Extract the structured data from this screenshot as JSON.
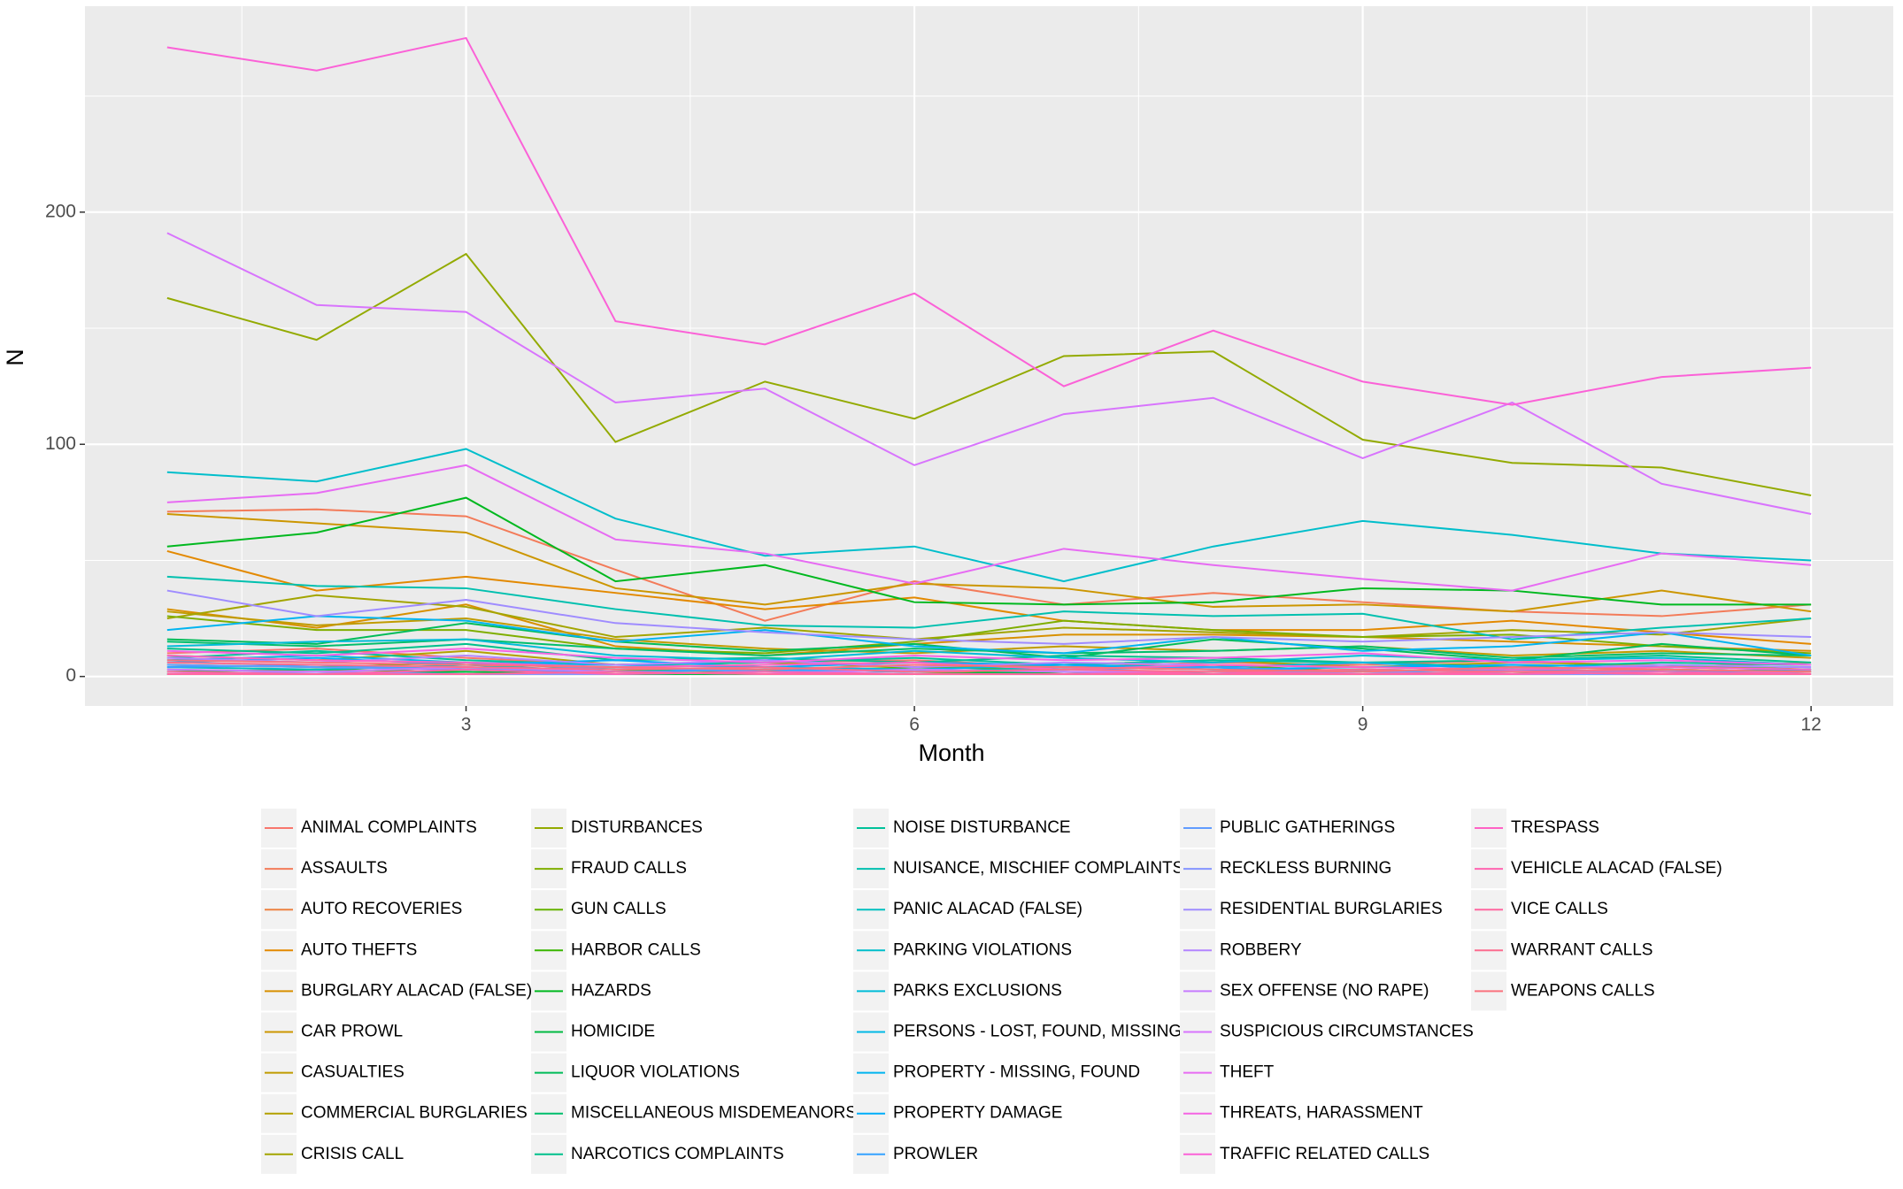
{
  "chart_data": {
    "type": "line",
    "x_label": "Month",
    "y_label": "N",
    "x": [
      1,
      2,
      3,
      4,
      5,
      6,
      7,
      8,
      9,
      10,
      11,
      12
    ],
    "xlim": [
      0.45,
      12.55
    ],
    "xticks": [
      3,
      6,
      9,
      12
    ],
    "x_minor_ticks": [
      1.5,
      4.5,
      7.5,
      10.5
    ],
    "ylim": [
      -12.7,
      288.7
    ],
    "yticks": [
      0,
      100,
      200
    ],
    "y_minor_ticks": [
      50,
      150,
      250
    ],
    "grid": true,
    "legend": "bottom",
    "series": [
      {
        "name": "ANIMAL COMPLAINTS",
        "color": "#F8766D",
        "values": [
          10,
          12,
          8,
          5,
          6,
          7,
          4,
          6,
          5,
          7,
          4,
          6
        ]
      },
      {
        "name": "ASSAULTS",
        "color": "#F37B59",
        "values": [
          71,
          72,
          69,
          46,
          24,
          41,
          31,
          36,
          32,
          28,
          26,
          31
        ]
      },
      {
        "name": "AUTO RECOVERIES",
        "color": "#ED8141",
        "values": [
          3,
          2,
          4,
          2,
          3,
          2,
          1,
          2,
          3,
          2,
          2,
          1
        ]
      },
      {
        "name": "AUTO THEFTS",
        "color": "#E38900",
        "values": [
          54,
          37,
          43,
          36,
          29,
          34,
          24,
          20,
          20,
          24,
          19,
          14
        ]
      },
      {
        "name": "BURGLARY ALACAD (FALSE)",
        "color": "#D89000",
        "values": [
          29,
          21,
          31,
          13,
          9,
          14,
          18,
          18,
          17,
          15,
          13,
          11
        ]
      },
      {
        "name": "CAR PROWL",
        "color": "#CC9600",
        "values": [
          70,
          66,
          62,
          38,
          31,
          40,
          38,
          30,
          31,
          28,
          37,
          28
        ]
      },
      {
        "name": "CASUALTIES",
        "color": "#C09B00",
        "values": [
          28,
          22,
          25,
          16,
          12,
          10,
          13,
          11,
          13,
          9,
          11,
          8
        ]
      },
      {
        "name": "COMMERCIAL BURGLARIES",
        "color": "#B3A000",
        "values": [
          9,
          7,
          11,
          5,
          6,
          4,
          5,
          7,
          4,
          6,
          5,
          3
        ]
      },
      {
        "name": "CRISIS CALL",
        "color": "#A3A500",
        "values": [
          25,
          35,
          30,
          17,
          21,
          16,
          21,
          19,
          17,
          20,
          18,
          25
        ]
      },
      {
        "name": "DISTURBANCES",
        "color": "#93AA00",
        "values": [
          163,
          145,
          182,
          101,
          127,
          111,
          138,
          140,
          102,
          92,
          90,
          78
        ]
      },
      {
        "name": "FRAUD CALLS",
        "color": "#7FAE00",
        "values": [
          26,
          20,
          20,
          12,
          10,
          15,
          24,
          20,
          17,
          18,
          13,
          10
        ]
      },
      {
        "name": "GUN CALLS",
        "color": "#65B200",
        "values": [
          5,
          4,
          6,
          3,
          2,
          4,
          3,
          5,
          2,
          4,
          3,
          2
        ]
      },
      {
        "name": "HARBOR CALLS",
        "color": "#39B600",
        "values": [
          2,
          3,
          2,
          1,
          2,
          3,
          1,
          2,
          2,
          1,
          3,
          2
        ]
      },
      {
        "name": "HAZARDS",
        "color": "#00B81F",
        "values": [
          56,
          62,
          77,
          41,
          48,
          32,
          31,
          32,
          38,
          37,
          31,
          31
        ]
      },
      {
        "name": "HOMICIDE",
        "color": "#00BA42",
        "values": [
          1,
          1,
          2,
          1,
          1,
          1,
          2,
          1,
          1,
          1,
          1,
          2
        ]
      },
      {
        "name": "LIQUOR VIOLATIONS",
        "color": "#00BC59",
        "values": [
          16,
          14,
          23,
          15,
          11,
          14,
          8,
          16,
          12,
          7,
          14,
          9
        ]
      },
      {
        "name": "MISCELLANEOUS MISDEMEANORS",
        "color": "#00BE6C",
        "values": [
          15,
          13,
          16,
          12,
          9,
          12,
          10,
          11,
          13,
          8,
          10,
          9
        ]
      },
      {
        "name": "NARCOTICS COMPLAINTS",
        "color": "#00C08B",
        "values": [
          12,
          10,
          14,
          7,
          8,
          6,
          9,
          8,
          6,
          7,
          9,
          6
        ]
      },
      {
        "name": "NOISE DISTURBANCE",
        "color": "#00C19A",
        "values": [
          8,
          11,
          7,
          5,
          6,
          8,
          5,
          7,
          6,
          4,
          6,
          5
        ]
      },
      {
        "name": "NUISANCE, MISCHIEF COMPLAINTS",
        "color": "#00C0AF",
        "values": [
          43,
          39,
          38,
          29,
          22,
          21,
          28,
          26,
          27,
          16,
          21,
          25
        ]
      },
      {
        "name": "PANIC ALACAD (FALSE)",
        "color": "#00BFC0",
        "values": [
          4,
          3,
          5,
          2,
          3,
          2,
          4,
          3,
          2,
          3,
          2,
          3
        ]
      },
      {
        "name": "PARKING VIOLATIONS",
        "color": "#00BECB",
        "values": [
          88,
          84,
          98,
          68,
          52,
          56,
          41,
          56,
          67,
          61,
          53,
          50
        ]
      },
      {
        "name": "PARKS EXCLUSIONS",
        "color": "#00BCD8",
        "values": [
          13,
          15,
          16,
          9,
          7,
          11,
          8,
          6,
          9,
          7,
          8,
          5
        ]
      },
      {
        "name": "PERSONS - LOST, FOUND, MISSING",
        "color": "#00B8E5",
        "values": [
          7,
          9,
          6,
          5,
          4,
          3,
          5,
          4,
          6,
          3,
          5,
          4
        ]
      },
      {
        "name": "PROPERTY - MISSING, FOUND",
        "color": "#00B4F0",
        "values": [
          20,
          26,
          24,
          15,
          20,
          13,
          10,
          17,
          11,
          13,
          19,
          9
        ]
      },
      {
        "name": "PROPERTY DAMAGE",
        "color": "#00ADFA",
        "values": [
          6,
          8,
          5,
          7,
          4,
          6,
          5,
          3,
          4,
          5,
          4,
          3
        ]
      },
      {
        "name": "PROWLER",
        "color": "#35A2FF",
        "values": [
          4,
          5,
          3,
          2,
          3,
          2,
          3,
          4,
          2,
          3,
          2,
          2
        ]
      },
      {
        "name": "PUBLIC GATHERINGS",
        "color": "#619CFF",
        "values": [
          5,
          4,
          3,
          4,
          2,
          3,
          2,
          1,
          3,
          2,
          2,
          1
        ]
      },
      {
        "name": "RECKLESS BURNING",
        "color": "#8494FF",
        "values": [
          1,
          2,
          1,
          1,
          2,
          1,
          1,
          1,
          2,
          1,
          1,
          1
        ]
      },
      {
        "name": "RESIDENTIAL BURGLARIES",
        "color": "#9F8CFF",
        "values": [
          37,
          26,
          33,
          23,
          19,
          16,
          14,
          17,
          15,
          17,
          19,
          17
        ]
      },
      {
        "name": "ROBBERY",
        "color": "#B385FF",
        "values": [
          8,
          6,
          9,
          5,
          7,
          4,
          6,
          5,
          4,
          3,
          5,
          4
        ]
      },
      {
        "name": "SEX OFFENSE (NO RAPE)",
        "color": "#C77CFF",
        "values": [
          3,
          2,
          4,
          2,
          1,
          3,
          2,
          2,
          1,
          2,
          1,
          2
        ]
      },
      {
        "name": "SUSPICIOUS CIRCUMSTANCES",
        "color": "#D874FD",
        "values": [
          191,
          160,
          157,
          118,
          124,
          91,
          113,
          120,
          94,
          118,
          83,
          70
        ]
      },
      {
        "name": "THEFT",
        "color": "#E76BF3",
        "values": [
          75,
          79,
          91,
          59,
          53,
          40,
          55,
          48,
          42,
          37,
          53,
          48
        ]
      },
      {
        "name": "THREATS, HARASSMENT",
        "color": "#F564E3",
        "values": [
          11,
          9,
          12,
          8,
          6,
          9,
          7,
          8,
          10,
          6,
          7,
          5
        ]
      },
      {
        "name": "TRAFFIC RELATED CALLS",
        "color": "#FB61D7",
        "values": [
          271,
          261,
          275,
          153,
          143,
          165,
          125,
          149,
          127,
          117,
          129,
          133
        ]
      },
      {
        "name": "TRESPASS",
        "color": "#FF62C5",
        "values": [
          9,
          7,
          6,
          4,
          5,
          6,
          3,
          5,
          4,
          3,
          4,
          3
        ]
      },
      {
        "name": "VEHICLE ALACAD (FALSE)",
        "color": "#FF64B0",
        "values": [
          2,
          1,
          3,
          1,
          2,
          1,
          1,
          2,
          1,
          1,
          2,
          1
        ]
      },
      {
        "name": "VICE CALLS",
        "color": "#FF68A0",
        "values": [
          1,
          1,
          1,
          2,
          1,
          1,
          1,
          1,
          1,
          2,
          1,
          1
        ]
      },
      {
        "name": "WARRANT CALLS",
        "color": "#FC6D8F",
        "values": [
          6,
          5,
          4,
          3,
          4,
          2,
          3,
          2,
          3,
          2,
          3,
          2
        ]
      },
      {
        "name": "WEAPONS CALLS",
        "color": "#FA727E",
        "values": [
          7,
          6,
          5,
          4,
          3,
          5,
          4,
          3,
          2,
          4,
          3,
          2
        ]
      }
    ]
  }
}
